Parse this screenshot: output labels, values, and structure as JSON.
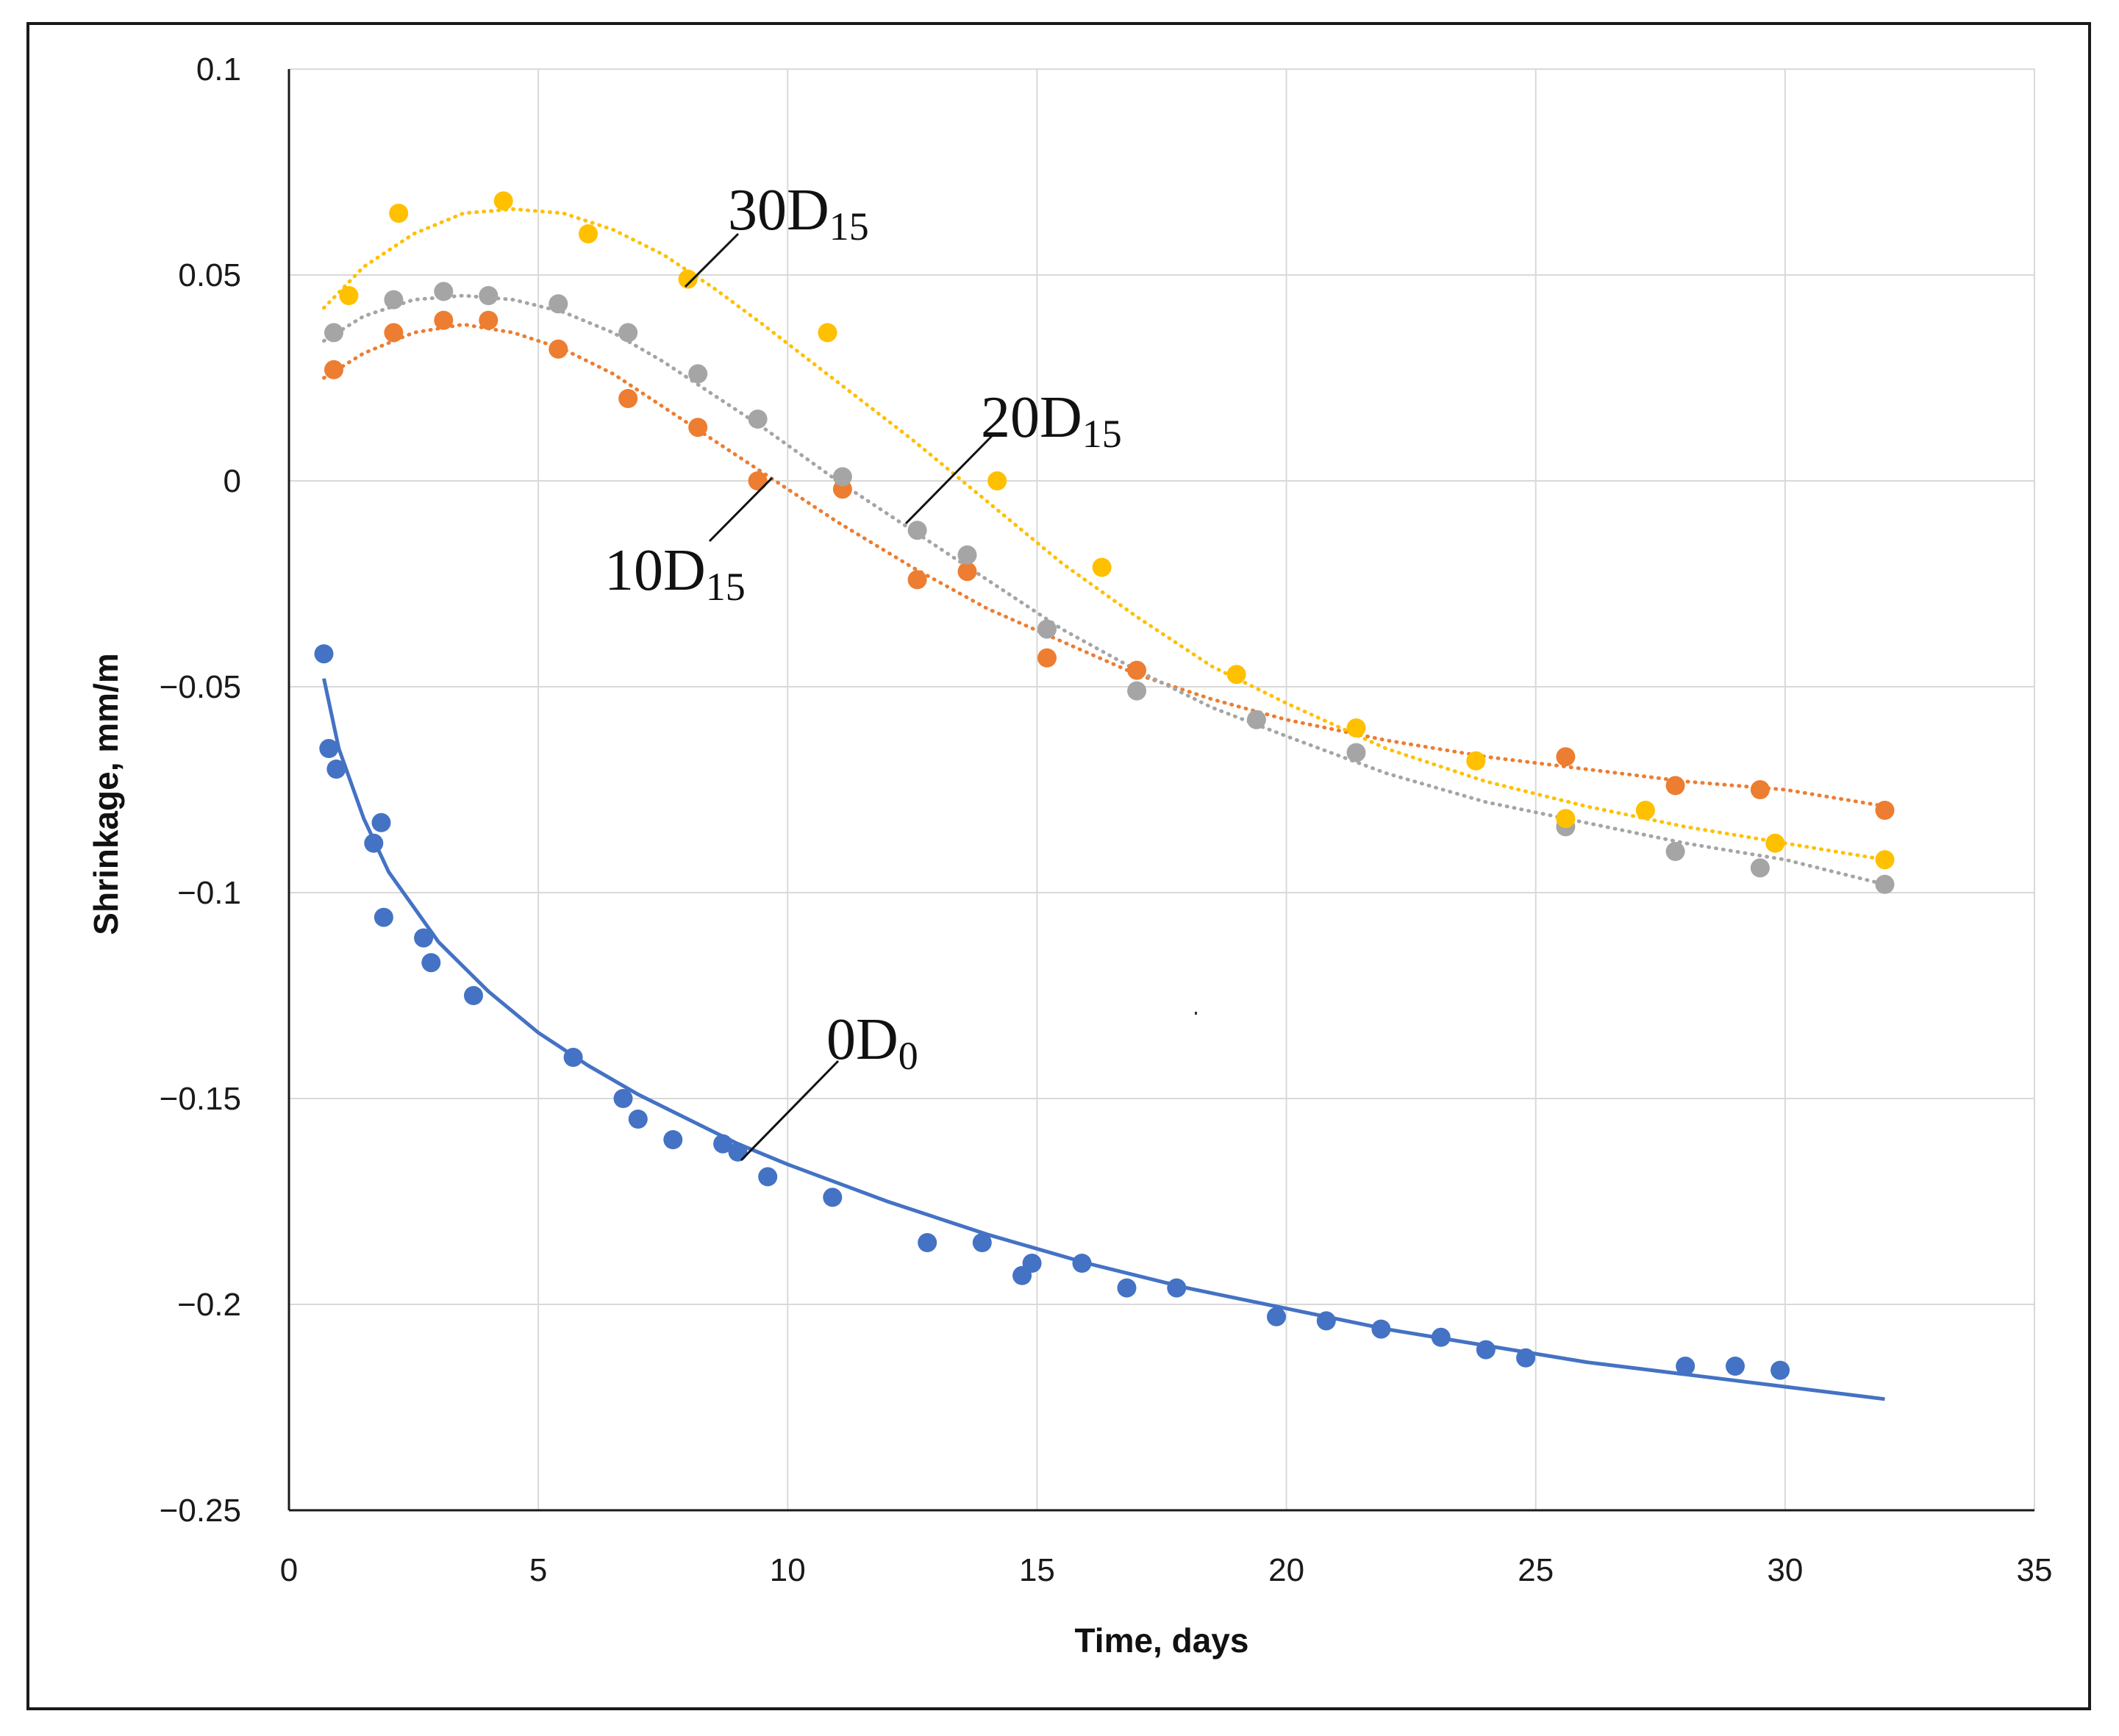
{
  "chart_data": {
    "type": "scatter",
    "title": "",
    "xlabel": "Time, days",
    "ylabel": "Shrinkage, mm/m",
    "xlim": [
      0,
      35
    ],
    "ylim": [
      -0.25,
      0.1
    ],
    "x_ticks": [
      "0",
      "5",
      "10",
      "15",
      "20",
      "25",
      "30",
      "35"
    ],
    "y_ticks": [
      "0.1",
      "0.05",
      "0",
      "−0.05",
      "−0.1",
      "−0.15",
      "−0.2",
      "−0.25"
    ],
    "grid": true,
    "series": [
      {
        "name": "0D0",
        "label_main": "0D",
        "label_sub": "0",
        "color": "#4472C4",
        "trendline": "solid",
        "points": [
          [
            0.7,
            -0.042
          ],
          [
            0.8,
            -0.065
          ],
          [
            0.95,
            -0.07
          ],
          [
            1.7,
            -0.088
          ],
          [
            1.85,
            -0.083
          ],
          [
            1.9,
            -0.106
          ],
          [
            2.7,
            -0.111
          ],
          [
            2.85,
            -0.117
          ],
          [
            3.7,
            -0.125
          ],
          [
            5.7,
            -0.14
          ],
          [
            6.7,
            -0.15
          ],
          [
            7.0,
            -0.155
          ],
          [
            7.7,
            -0.16
          ],
          [
            8.7,
            -0.161
          ],
          [
            9.0,
            -0.163
          ],
          [
            9.6,
            -0.169
          ],
          [
            10.9,
            -0.174
          ],
          [
            12.8,
            -0.185
          ],
          [
            13.9,
            -0.185
          ],
          [
            14.7,
            -0.193
          ],
          [
            14.9,
            -0.19
          ],
          [
            15.9,
            -0.19
          ],
          [
            16.8,
            -0.196
          ],
          [
            17.8,
            -0.196
          ],
          [
            19.8,
            -0.203
          ],
          [
            20.8,
            -0.204
          ],
          [
            21.9,
            -0.206
          ],
          [
            23.1,
            -0.208
          ],
          [
            24.0,
            -0.211
          ],
          [
            24.8,
            -0.213
          ],
          [
            28.0,
            -0.215
          ],
          [
            29.0,
            -0.215
          ],
          [
            29.9,
            -0.216
          ]
        ],
        "fit": [
          [
            0.7,
            -0.048
          ],
          [
            1.0,
            -0.065
          ],
          [
            1.5,
            -0.082
          ],
          [
            2.0,
            -0.095
          ],
          [
            3.0,
            -0.112
          ],
          [
            4.0,
            -0.124
          ],
          [
            5.0,
            -0.134
          ],
          [
            6.0,
            -0.142
          ],
          [
            7.0,
            -0.149
          ],
          [
            8.0,
            -0.155
          ],
          [
            9.0,
            -0.161
          ],
          [
            10.0,
            -0.166
          ],
          [
            12.0,
            -0.175
          ],
          [
            14.0,
            -0.183
          ],
          [
            16.0,
            -0.19
          ],
          [
            18.0,
            -0.196
          ],
          [
            20.0,
            -0.201
          ],
          [
            22.0,
            -0.206
          ],
          [
            24.0,
            -0.21
          ],
          [
            26.0,
            -0.214
          ],
          [
            28.0,
            -0.217
          ],
          [
            30.0,
            -0.22
          ],
          [
            32.0,
            -0.223
          ]
        ]
      },
      {
        "name": "10D15",
        "label_main": "10D",
        "label_sub": "15",
        "color": "#ED7D31",
        "trendline": "dotted",
        "points": [
          [
            0.9,
            0.027
          ],
          [
            2.1,
            0.036
          ],
          [
            3.1,
            0.039
          ],
          [
            4.0,
            0.039
          ],
          [
            5.4,
            0.032
          ],
          [
            6.8,
            0.02
          ],
          [
            8.2,
            0.013
          ],
          [
            9.4,
            0.0
          ],
          [
            11.1,
            -0.002
          ],
          [
            12.6,
            -0.024
          ],
          [
            13.6,
            -0.022
          ],
          [
            15.2,
            -0.043
          ],
          [
            17.0,
            -0.046
          ],
          [
            25.6,
            -0.067
          ],
          [
            27.8,
            -0.074
          ],
          [
            29.5,
            -0.075
          ],
          [
            32.0,
            -0.08
          ]
        ],
        "fit": [
          [
            0.7,
            0.025
          ],
          [
            1.5,
            0.031
          ],
          [
            2.5,
            0.036
          ],
          [
            3.5,
            0.038
          ],
          [
            4.5,
            0.036
          ],
          [
            5.5,
            0.032
          ],
          [
            6.5,
            0.026
          ],
          [
            7.5,
            0.018
          ],
          [
            8.5,
            0.01
          ],
          [
            9.5,
            0.002
          ],
          [
            11.0,
            -0.01
          ],
          [
            12.5,
            -0.021
          ],
          [
            14.0,
            -0.031
          ],
          [
            15.5,
            -0.039
          ],
          [
            17.0,
            -0.047
          ],
          [
            18.5,
            -0.053
          ],
          [
            20.0,
            -0.058
          ],
          [
            22.0,
            -0.063
          ],
          [
            24.0,
            -0.067
          ],
          [
            26.0,
            -0.07
          ],
          [
            28.0,
            -0.073
          ],
          [
            30.0,
            -0.075
          ],
          [
            32.0,
            -0.079
          ]
        ]
      },
      {
        "name": "20D15",
        "label_main": "20D",
        "label_sub": "15",
        "color": "#A5A5A5",
        "trendline": "dotted",
        "points": [
          [
            0.9,
            0.036
          ],
          [
            2.1,
            0.044
          ],
          [
            3.1,
            0.046
          ],
          [
            4.0,
            0.045
          ],
          [
            5.4,
            0.043
          ],
          [
            6.8,
            0.036
          ],
          [
            8.2,
            0.026
          ],
          [
            9.4,
            0.015
          ],
          [
            11.1,
            0.001
          ],
          [
            12.6,
            -0.012
          ],
          [
            13.6,
            -0.018
          ],
          [
            15.2,
            -0.036
          ],
          [
            17.0,
            -0.051
          ],
          [
            19.4,
            -0.058
          ],
          [
            21.4,
            -0.066
          ],
          [
            25.6,
            -0.084
          ],
          [
            27.8,
            -0.09
          ],
          [
            29.5,
            -0.094
          ],
          [
            32.0,
            -0.098
          ]
        ],
        "fit": [
          [
            0.7,
            0.034
          ],
          [
            1.5,
            0.04
          ],
          [
            2.5,
            0.044
          ],
          [
            3.5,
            0.045
          ],
          [
            4.5,
            0.044
          ],
          [
            5.5,
            0.041
          ],
          [
            6.5,
            0.036
          ],
          [
            7.5,
            0.029
          ],
          [
            8.5,
            0.021
          ],
          [
            9.5,
            0.013
          ],
          [
            11.0,
            0.0
          ],
          [
            12.5,
            -0.012
          ],
          [
            14.0,
            -0.024
          ],
          [
            15.5,
            -0.036
          ],
          [
            17.0,
            -0.046
          ],
          [
            18.5,
            -0.055
          ],
          [
            20.0,
            -0.062
          ],
          [
            22.0,
            -0.071
          ],
          [
            24.0,
            -0.078
          ],
          [
            26.0,
            -0.083
          ],
          [
            28.0,
            -0.088
          ],
          [
            30.0,
            -0.092
          ],
          [
            32.0,
            -0.098
          ]
        ]
      },
      {
        "name": "30D15",
        "label_main": "30D",
        "label_sub": "15",
        "color": "#FFC000",
        "trendline": "dotted",
        "points": [
          [
            1.2,
            0.045
          ],
          [
            2.2,
            0.065
          ],
          [
            4.3,
            0.068
          ],
          [
            6.0,
            0.06
          ],
          [
            8.0,
            0.049
          ],
          [
            10.8,
            0.036
          ],
          [
            14.2,
            0.0
          ],
          [
            16.3,
            -0.021
          ],
          [
            19.0,
            -0.047
          ],
          [
            21.4,
            -0.06
          ],
          [
            23.8,
            -0.068
          ],
          [
            25.6,
            -0.082
          ],
          [
            27.2,
            -0.08
          ],
          [
            29.8,
            -0.088
          ],
          [
            32.0,
            -0.092
          ]
        ],
        "fit": [
          [
            0.7,
            0.042
          ],
          [
            1.5,
            0.052
          ],
          [
            2.5,
            0.06
          ],
          [
            3.5,
            0.065
          ],
          [
            4.5,
            0.066
          ],
          [
            5.5,
            0.065
          ],
          [
            6.5,
            0.061
          ],
          [
            7.5,
            0.055
          ],
          [
            8.5,
            0.047
          ],
          [
            9.5,
            0.038
          ],
          [
            11.0,
            0.024
          ],
          [
            12.5,
            0.01
          ],
          [
            14.0,
            -0.005
          ],
          [
            15.5,
            -0.02
          ],
          [
            17.0,
            -0.033
          ],
          [
            18.5,
            -0.045
          ],
          [
            20.0,
            -0.054
          ],
          [
            22.0,
            -0.065
          ],
          [
            24.0,
            -0.073
          ],
          [
            26.0,
            -0.079
          ],
          [
            28.0,
            -0.084
          ],
          [
            30.0,
            -0.088
          ],
          [
            32.0,
            -0.092
          ]
        ]
      }
    ]
  }
}
